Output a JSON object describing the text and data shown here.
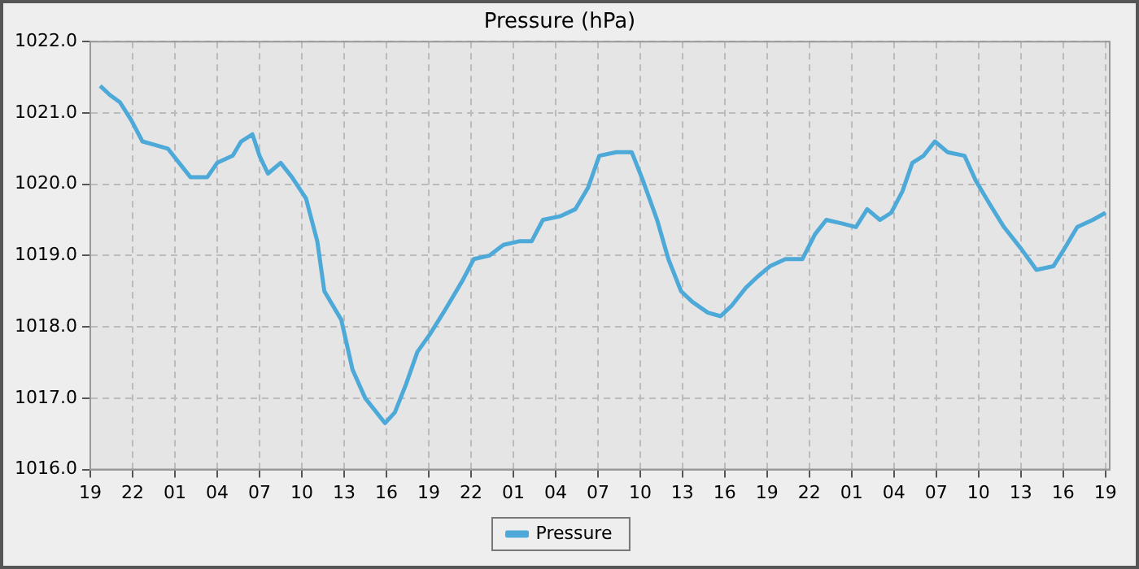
{
  "chart_data": {
    "type": "line",
    "title": "Pressure (hPa)",
    "x": [
      "--01-01T19:42",
      "--01-01T20:24",
      "--01-01T21:06",
      "--01-01T21:54",
      "--01-01T22:42",
      "--01-01T23:36",
      "--01-02T00:30",
      "--01-02T01:18",
      "--01-02T02:06",
      "--01-02T03:18",
      "--01-02T04:00",
      "--01-02T05:06",
      "--01-02T05:42",
      "--01-02T06:30",
      "--01-02T07:00",
      "--01-02T07:36",
      "--01-02T08:30",
      "--01-02T09:18",
      "--01-02T10:18",
      "--01-02T11:06",
      "--01-02T11:36",
      "--01-02T12:48",
      "--01-02T13:36",
      "--01-02T14:30",
      "--01-02T15:18",
      "--01-02T15:54",
      "--01-02T16:36",
      "--01-02T17:24",
      "--01-02T18:12",
      "--01-02T19:06",
      "--01-02T20:12",
      "--01-02T21:24",
      "--01-02T22:12",
      "--01-02T23:18",
      "--01-03T00:18",
      "--01-03T01:24",
      "--01-03T02:18",
      "--01-03T03:06",
      "--01-03T04:18",
      "--01-03T05:24",
      "--01-03T06:18",
      "--01-03T07:06",
      "--01-03T08:18",
      "--01-03T09:24",
      "--01-03T10:12",
      "--01-03T11:12",
      "--01-03T12:00",
      "--01-03T12:54",
      "--01-03T13:42",
      "--01-03T14:48",
      "--01-03T15:42",
      "--01-03T16:30",
      "--01-03T17:30",
      "--01-03T18:18",
      "--01-03T19:12",
      "--01-03T20:18",
      "--01-03T21:30",
      "--01-03T22:24",
      "--01-03T23:12",
      "--01-04T00:18",
      "--01-04T01:18",
      "--01-04T02:06",
      "--01-04T03:00",
      "--01-04T03:48",
      "--01-04T04:36",
      "--01-04T05:18",
      "--01-04T06:06",
      "--01-04T06:54",
      "--01-04T07:48",
      "--01-04T09:00",
      "--01-04T09:48",
      "--01-04T10:42",
      "--01-04T11:48",
      "--01-04T13:00",
      "--01-04T14:06",
      "--01-04T15:18",
      "--01-04T16:06",
      "--01-04T17:00",
      "--01-04T18:06",
      "--01-04T19:00"
    ],
    "series": [
      {
        "name": "Pressure",
        "color": "#4da9d8",
        "values": [
          1021.38,
          1021.25,
          1021.15,
          1020.9,
          1020.6,
          1020.55,
          1020.5,
          1020.3,
          1020.1,
          1020.1,
          1020.3,
          1020.4,
          1020.6,
          1020.7,
          1020.4,
          1020.15,
          1020.3,
          1020.1,
          1019.8,
          1019.2,
          1018.5,
          1018.1,
          1017.4,
          1017.0,
          1016.8,
          1016.65,
          1016.8,
          1017.2,
          1017.65,
          1017.9,
          1018.25,
          1018.65,
          1018.95,
          1019.0,
          1019.15,
          1019.2,
          1019.2,
          1019.5,
          1019.55,
          1019.65,
          1019.95,
          1020.4,
          1020.45,
          1020.45,
          1020.05,
          1019.5,
          1018.95,
          1018.5,
          1018.35,
          1018.2,
          1018.15,
          1018.3,
          1018.55,
          1018.7,
          1018.85,
          1018.95,
          1018.95,
          1019.3,
          1019.5,
          1019.45,
          1019.4,
          1019.65,
          1019.5,
          1019.6,
          1019.9,
          1020.3,
          1020.4,
          1020.6,
          1020.45,
          1020.4,
          1020.05,
          1019.75,
          1019.4,
          1019.1,
          1018.8,
          1018.85,
          1019.1,
          1019.4,
          1019.5,
          1019.6
        ]
      }
    ],
    "xlim": [
      "--01-01T19:00",
      "--01-04T19:18"
    ],
    "xticks": [
      {
        "value": "--01-01T19:00",
        "label": "19"
      },
      {
        "value": "--01-01T22:00",
        "label": "22"
      },
      {
        "value": "--01-02T01:00",
        "label": "01"
      },
      {
        "value": "--01-02T04:00",
        "label": "04"
      },
      {
        "value": "--01-02T07:00",
        "label": "07"
      },
      {
        "value": "--01-02T10:00",
        "label": "10"
      },
      {
        "value": "--01-02T13:00",
        "label": "13"
      },
      {
        "value": "--01-02T16:00",
        "label": "16"
      },
      {
        "value": "--01-02T19:00",
        "label": "19"
      },
      {
        "value": "--01-02T22:00",
        "label": "22"
      },
      {
        "value": "--01-03T01:00",
        "label": "01"
      },
      {
        "value": "--01-03T04:00",
        "label": "04"
      },
      {
        "value": "--01-03T07:00",
        "label": "07"
      },
      {
        "value": "--01-03T10:00",
        "label": "10"
      },
      {
        "value": "--01-03T13:00",
        "label": "13"
      },
      {
        "value": "--01-03T16:00",
        "label": "16"
      },
      {
        "value": "--01-03T19:00",
        "label": "19"
      },
      {
        "value": "--01-03T22:00",
        "label": "22"
      },
      {
        "value": "--01-04T01:00",
        "label": "01"
      },
      {
        "value": "--01-04T04:00",
        "label": "04"
      },
      {
        "value": "--01-04T07:00",
        "label": "07"
      },
      {
        "value": "--01-04T10:00",
        "label": "10"
      },
      {
        "value": "--01-04T13:00",
        "label": "13"
      },
      {
        "value": "--01-04T16:00",
        "label": "16"
      },
      {
        "value": "--01-04T19:00",
        "label": "19"
      }
    ],
    "ylim": [
      1016,
      1022
    ],
    "yticks": [
      {
        "value": 1016,
        "label": "1016.0"
      },
      {
        "value": 1017,
        "label": "1017.0"
      },
      {
        "value": 1018,
        "label": "1018.0"
      },
      {
        "value": 1019,
        "label": "1019.0"
      },
      {
        "value": 1020,
        "label": "1020.0"
      },
      {
        "value": 1021,
        "label": "1021.0"
      },
      {
        "value": 1022,
        "label": "1022.0"
      }
    ],
    "grid": true,
    "legend": "bottom",
    "marker": "none",
    "line_style": "solid"
  }
}
